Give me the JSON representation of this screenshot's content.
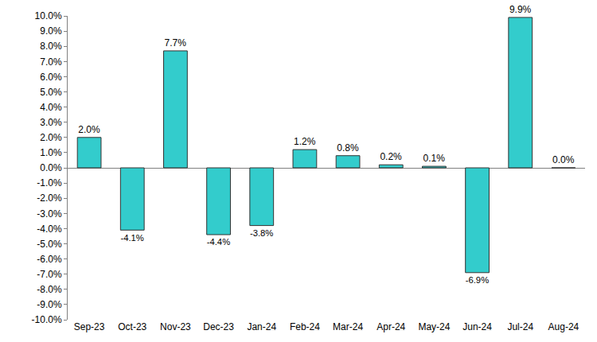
{
  "chart_data": {
    "type": "bar",
    "categories": [
      "Sep-23",
      "Oct-23",
      "Nov-23",
      "Dec-23",
      "Jan-24",
      "Feb-24",
      "Mar-24",
      "Apr-24",
      "May-24",
      "Jun-24",
      "Jul-24",
      "Aug-24"
    ],
    "values": [
      2.0,
      -4.1,
      7.7,
      -4.4,
      -3.8,
      1.2,
      0.8,
      0.2,
      0.1,
      -6.9,
      9.9,
      0.0
    ],
    "value_labels": [
      "2.0%",
      "-4.1%",
      "7.7%",
      "-4.4%",
      "-3.8%",
      "1.2%",
      "0.8%",
      "0.2%",
      "0.1%",
      "-6.9%",
      "9.9%",
      "0.0%"
    ],
    "data_labels": true,
    "color": "#33cccc",
    "ylim": [
      -10,
      10
    ],
    "yticks": [
      {
        "value": -10,
        "label": "-10.0%"
      },
      {
        "value": -9,
        "label": "-9.0%"
      },
      {
        "value": -8,
        "label": "-8.0%"
      },
      {
        "value": -7,
        "label": "-7.0%"
      },
      {
        "value": -6,
        "label": "-6.0%"
      },
      {
        "value": -5,
        "label": "-5.0%"
      },
      {
        "value": -4,
        "label": "-4.0%"
      },
      {
        "value": -3,
        "label": "-3.0%"
      },
      {
        "value": -2,
        "label": "-2.0%"
      },
      {
        "value": -1,
        "label": "-1.0%"
      },
      {
        "value": 0,
        "label": "0.0%"
      },
      {
        "value": 1,
        "label": "1.0%"
      },
      {
        "value": 2,
        "label": "2.0%"
      },
      {
        "value": 3,
        "label": "3.0%"
      },
      {
        "value": 4,
        "label": "4.0%"
      },
      {
        "value": 5,
        "label": "5.0%"
      },
      {
        "value": 6,
        "label": "6.0%"
      },
      {
        "value": 7,
        "label": "7.0%"
      },
      {
        "value": 8,
        "label": "8.0%"
      },
      {
        "value": 9,
        "label": "9.0%"
      },
      {
        "value": 10,
        "label": "10.0%"
      }
    ],
    "grid": false
  }
}
